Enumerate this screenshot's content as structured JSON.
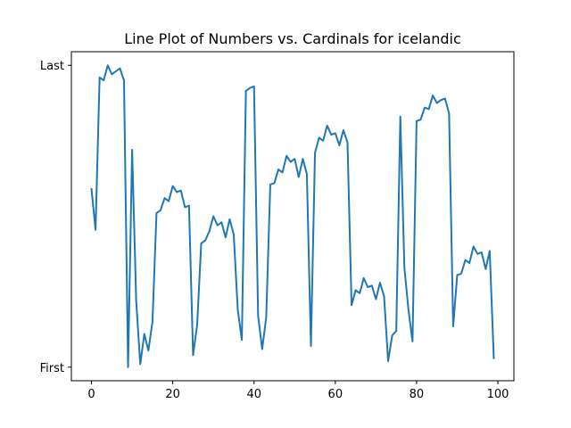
{
  "chart_data": {
    "type": "line",
    "title": "Line Plot of Numbers vs. Cardinals for icelandic",
    "xlabel": "",
    "ylabel": "",
    "xlim": [
      -4.95,
      103.95
    ],
    "ylim": [
      -0.045,
      1.045
    ],
    "x_ticks": [
      0,
      20,
      40,
      60,
      80,
      100
    ],
    "y_ticks": [
      {
        "value": 0,
        "label": "First"
      },
      {
        "value": 1,
        "label": "Last"
      }
    ],
    "grid": false,
    "legend": null,
    "series": [
      {
        "color": "#1f77b4",
        "x": [
          0,
          1,
          2,
          3,
          4,
          5,
          6,
          7,
          8,
          9,
          10,
          11,
          12,
          13,
          14,
          15,
          16,
          17,
          18,
          19,
          20,
          21,
          22,
          23,
          24,
          25,
          26,
          27,
          28,
          29,
          30,
          31,
          32,
          33,
          34,
          35,
          36,
          37,
          38,
          39,
          40,
          41,
          42,
          43,
          44,
          45,
          46,
          47,
          48,
          49,
          50,
          51,
          52,
          53,
          54,
          55,
          56,
          57,
          58,
          59,
          60,
          61,
          62,
          63,
          64,
          65,
          66,
          67,
          68,
          69,
          70,
          71,
          72,
          73,
          74,
          75,
          76,
          77,
          78,
          79,
          80,
          81,
          82,
          83,
          84,
          85,
          86,
          87,
          88,
          89,
          90,
          91,
          92,
          93,
          94,
          95,
          96,
          97,
          98,
          99
        ],
        "values": [
          0.59,
          0.455,
          0.96,
          0.95,
          1.0,
          0.97,
          0.98,
          0.99,
          0.95,
          0.0,
          0.72,
          0.22,
          0.01,
          0.11,
          0.055,
          0.15,
          0.51,
          0.52,
          0.56,
          0.55,
          0.6,
          0.58,
          0.585,
          0.53,
          0.535,
          0.04,
          0.14,
          0.41,
          0.42,
          0.45,
          0.5,
          0.47,
          0.48,
          0.43,
          0.49,
          0.44,
          0.19,
          0.09,
          0.915,
          0.925,
          0.93,
          0.17,
          0.06,
          0.165,
          0.605,
          0.61,
          0.655,
          0.645,
          0.7,
          0.68,
          0.69,
          0.63,
          0.69,
          0.64,
          0.07,
          0.71,
          0.76,
          0.75,
          0.8,
          0.77,
          0.775,
          0.735,
          0.785,
          0.745,
          0.205,
          0.255,
          0.245,
          0.295,
          0.265,
          0.27,
          0.225,
          0.28,
          0.235,
          0.02,
          0.105,
          0.12,
          0.83,
          0.33,
          0.19,
          0.085,
          0.815,
          0.82,
          0.86,
          0.855,
          0.9,
          0.875,
          0.885,
          0.89,
          0.84,
          0.135,
          0.305,
          0.31,
          0.355,
          0.345,
          0.4,
          0.375,
          0.38,
          0.325,
          0.385,
          0.03
        ]
      }
    ]
  }
}
